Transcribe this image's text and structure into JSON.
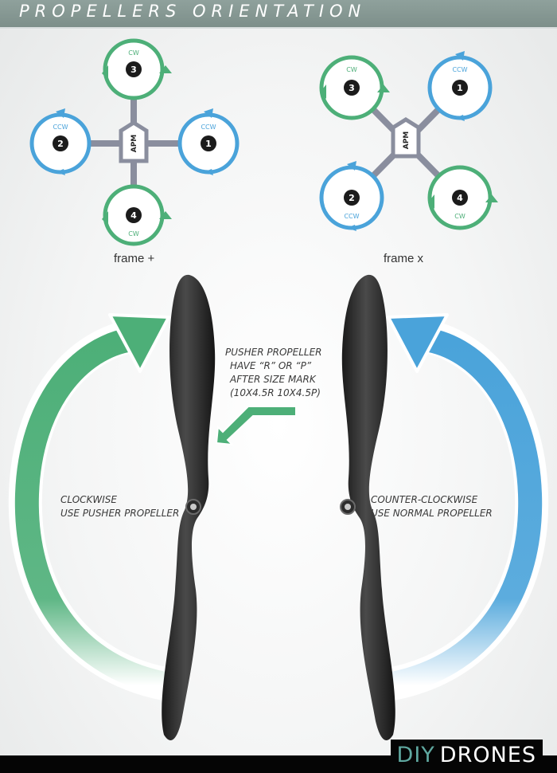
{
  "header": {
    "title": "PROPELLERS ORIENTATION"
  },
  "frames": [
    {
      "caption": "frame +",
      "controller": "APM",
      "motors": [
        {
          "number": "1",
          "rotation": "CCW"
        },
        {
          "number": "2",
          "rotation": "CCW"
        },
        {
          "number": "3",
          "rotation": "CW"
        },
        {
          "number": "4",
          "rotation": "CW"
        }
      ]
    },
    {
      "caption": "frame x",
      "controller": "APM",
      "motors": [
        {
          "number": "1",
          "rotation": "CCW"
        },
        {
          "number": "2",
          "rotation": "CCW"
        },
        {
          "number": "3",
          "rotation": "CW"
        },
        {
          "number": "4",
          "rotation": "CW"
        }
      ]
    }
  ],
  "notes": {
    "pusher": [
      "PUSHER PROPELLER",
      "HAVE “R” OR “P”",
      "AFTER SIZE MARK",
      "(10X4.5R 10X4.5P)"
    ],
    "clockwise": [
      "CLOCKWISE",
      "USE PUSHER PROPELLER"
    ],
    "counter": [
      "COUNTER-CLOCKWISE",
      "USE NORMAL PROPELLER"
    ]
  },
  "brand": {
    "part1": "DIY",
    "part2": "DRONES"
  },
  "colors": {
    "cw": "#4daf78",
    "ccw": "#4aa3da",
    "arm": "#8a8e9e",
    "header": "#869893"
  }
}
